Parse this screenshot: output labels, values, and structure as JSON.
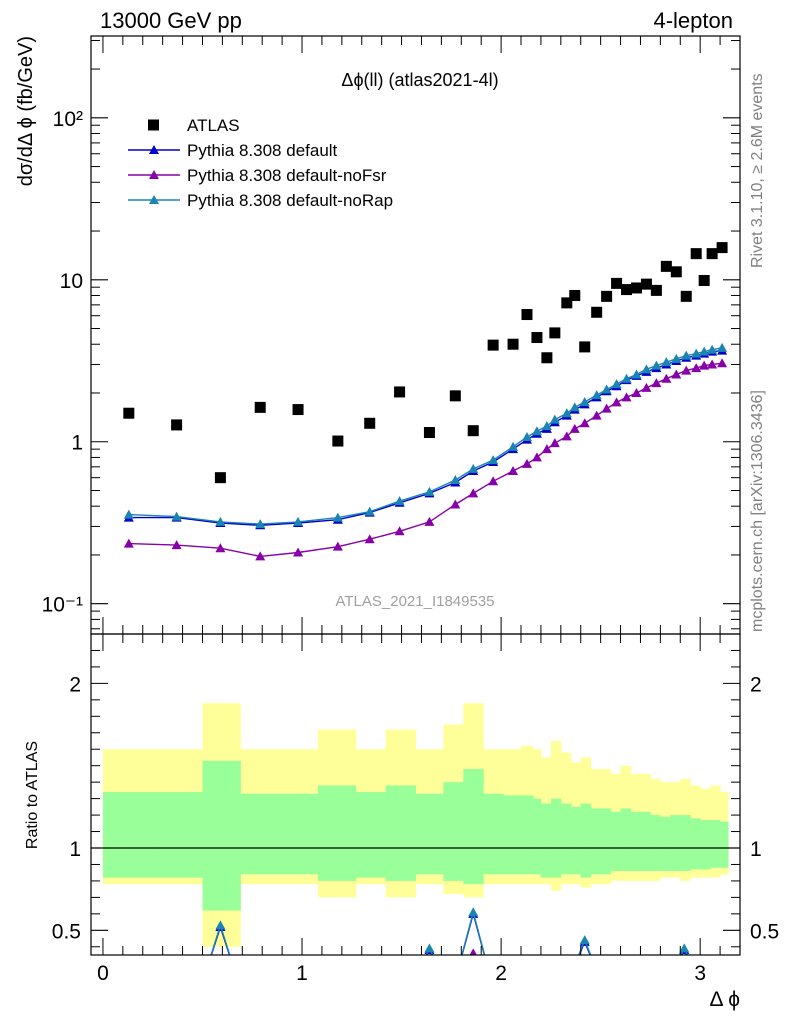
{
  "header": {
    "left": "13000 GeV pp",
    "right": "4-lepton"
  },
  "side_text": {
    "top": "Rivet 3.1.10, ≥ 2.6M events",
    "bottom": "mcplots.cern.ch [arXiv:1306.3436]"
  },
  "chart_data": [
    {
      "type": "scatter",
      "title": "Δϕ(ll) (atlas2021-4l)",
      "watermark": "ATLAS_2021_I1849535",
      "ylabel": "dσ/dΔ ϕ (fb/GeV)",
      "xlabel": "",
      "yscale": "log",
      "ylim": [
        0.065,
        320
      ],
      "xlim": [
        -0.06,
        3.2
      ],
      "ytick_labels": [
        "10⁻¹",
        "1",
        "10",
        "10²"
      ],
      "legend_position": "top-left",
      "series": [
        {
          "name": "ATLAS",
          "color": "#000000",
          "marker": "square",
          "x": [
            0.13,
            0.37,
            0.59,
            0.79,
            0.98,
            1.18,
            1.34,
            1.49,
            1.64,
            1.77,
            1.86,
            1.96,
            2.06,
            2.13,
            2.18,
            2.23,
            2.27,
            2.33,
            2.37,
            2.42,
            2.48,
            2.53,
            2.58,
            2.63,
            2.68,
            2.73,
            2.78,
            2.83,
            2.88,
            2.93,
            2.98,
            3.02,
            3.06,
            3.11
          ],
          "y": [
            1.5,
            1.27,
            0.6,
            1.63,
            1.58,
            1.01,
            1.3,
            2.03,
            1.14,
            1.92,
            1.17,
            3.95,
            4.0,
            6.1,
            4.4,
            3.3,
            4.7,
            7.2,
            8.0,
            3.85,
            6.3,
            7.9,
            9.5,
            8.7,
            8.9,
            9.4,
            8.6,
            12.1,
            11.2,
            7.9,
            14.5,
            9.9,
            14.5,
            15.8
          ]
        },
        {
          "name": "Pythia 8.308 default",
          "color": "#0000cc",
          "marker": "triangle",
          "x": [
            0.13,
            0.37,
            0.59,
            0.79,
            0.98,
            1.18,
            1.34,
            1.49,
            1.64,
            1.77,
            1.86,
            1.96,
            2.06,
            2.13,
            2.18,
            2.23,
            2.27,
            2.33,
            2.37,
            2.42,
            2.48,
            2.53,
            2.58,
            2.63,
            2.68,
            2.73,
            2.78,
            2.83,
            2.88,
            2.93,
            2.98,
            3.02,
            3.06,
            3.11
          ],
          "y": [
            0.34,
            0.34,
            0.315,
            0.305,
            0.315,
            0.33,
            0.365,
            0.42,
            0.48,
            0.56,
            0.66,
            0.75,
            0.9,
            1.03,
            1.12,
            1.2,
            1.32,
            1.45,
            1.58,
            1.7,
            1.88,
            2.05,
            2.2,
            2.4,
            2.55,
            2.7,
            2.85,
            3.0,
            3.15,
            3.3,
            3.4,
            3.5,
            3.6,
            3.65
          ]
        },
        {
          "name": "Pythia 8.308 default-noFsr",
          "color": "#8800aa",
          "marker": "triangle",
          "x": [
            0.13,
            0.37,
            0.59,
            0.79,
            0.98,
            1.18,
            1.34,
            1.49,
            1.64,
            1.77,
            1.86,
            1.96,
            2.06,
            2.13,
            2.18,
            2.23,
            2.27,
            2.33,
            2.37,
            2.42,
            2.48,
            2.53,
            2.58,
            2.63,
            2.68,
            2.73,
            2.78,
            2.83,
            2.88,
            2.93,
            2.98,
            3.02,
            3.06,
            3.11
          ],
          "y": [
            0.235,
            0.23,
            0.22,
            0.196,
            0.207,
            0.225,
            0.25,
            0.28,
            0.32,
            0.41,
            0.48,
            0.57,
            0.66,
            0.73,
            0.8,
            0.9,
            0.98,
            1.08,
            1.2,
            1.3,
            1.45,
            1.6,
            1.75,
            1.88,
            2.0,
            2.15,
            2.3,
            2.45,
            2.6,
            2.75,
            2.85,
            2.95,
            3.0,
            3.05
          ]
        },
        {
          "name": "Pythia 8.308 default-noRap",
          "color": "#1a85b3",
          "marker": "triangle",
          "x": [
            0.13,
            0.37,
            0.59,
            0.79,
            0.98,
            1.18,
            1.34,
            1.49,
            1.64,
            1.77,
            1.86,
            1.96,
            2.06,
            2.13,
            2.18,
            2.23,
            2.27,
            2.33,
            2.37,
            2.42,
            2.48,
            2.53,
            2.58,
            2.63,
            2.68,
            2.73,
            2.78,
            2.83,
            2.88,
            2.93,
            2.98,
            3.02,
            3.06,
            3.11
          ],
          "y": [
            0.355,
            0.345,
            0.32,
            0.31,
            0.32,
            0.34,
            0.37,
            0.43,
            0.49,
            0.58,
            0.68,
            0.77,
            0.93,
            1.07,
            1.16,
            1.25,
            1.37,
            1.5,
            1.63,
            1.76,
            1.94,
            2.1,
            2.27,
            2.45,
            2.6,
            2.8,
            2.95,
            3.1,
            3.25,
            3.4,
            3.5,
            3.6,
            3.7,
            3.8
          ]
        }
      ]
    },
    {
      "type": "area",
      "title": "",
      "ylabel": "Ratio to ATLAS",
      "xlabel": "Δ ϕ",
      "ylim": [
        0.35,
        2.3
      ],
      "xlim": [
        -0.06,
        3.2
      ],
      "ytick_labels": [
        "0.5",
        "1",
        "2"
      ],
      "xtick_labels": [
        "0",
        "1",
        "2",
        "3"
      ],
      "bins": [
        0,
        0.26,
        0.5,
        0.69,
        0.89,
        1.08,
        1.27,
        1.42,
        1.57,
        1.71,
        1.81,
        1.91,
        2.01,
        2.1,
        2.16,
        2.2,
        2.25,
        2.3,
        2.35,
        2.4,
        2.45,
        2.5,
        2.55,
        2.6,
        2.65,
        2.7,
        2.75,
        2.8,
        2.85,
        2.9,
        2.95,
        3.0,
        3.05,
        3.1,
        3.14
      ],
      "band_stat_sys": {
        "color": "#ffff99",
        "low": [
          0.78,
          0.78,
          0.4,
          0.78,
          0.78,
          0.7,
          0.78,
          0.7,
          0.78,
          0.72,
          0.7,
          0.78,
          0.78,
          0.78,
          0.78,
          0.78,
          0.74,
          0.78,
          0.78,
          0.76,
          0.78,
          0.78,
          0.8,
          0.8,
          0.8,
          0.8,
          0.8,
          0.82,
          0.82,
          0.8,
          0.82,
          0.82,
          0.82,
          0.84
        ],
        "high": [
          1.6,
          1.6,
          1.88,
          1.6,
          1.6,
          1.72,
          1.6,
          1.72,
          1.6,
          1.75,
          1.88,
          1.6,
          1.6,
          1.62,
          1.6,
          1.55,
          1.65,
          1.58,
          1.52,
          1.55,
          1.48,
          1.48,
          1.45,
          1.5,
          1.45,
          1.45,
          1.42,
          1.4,
          1.4,
          1.42,
          1.38,
          1.36,
          1.38,
          1.34
        ]
      },
      "band_stat": {
        "color": "#99ff99",
        "low": [
          0.82,
          0.82,
          0.62,
          0.84,
          0.84,
          0.8,
          0.82,
          0.8,
          0.84,
          0.8,
          0.78,
          0.84,
          0.84,
          0.84,
          0.84,
          0.82,
          0.82,
          0.84,
          0.84,
          0.82,
          0.84,
          0.84,
          0.86,
          0.86,
          0.86,
          0.86,
          0.86,
          0.86,
          0.86,
          0.86,
          0.87,
          0.87,
          0.88,
          0.88
        ],
        "high": [
          1.34,
          1.34,
          1.53,
          1.33,
          1.33,
          1.38,
          1.34,
          1.38,
          1.33,
          1.4,
          1.48,
          1.33,
          1.32,
          1.32,
          1.3,
          1.27,
          1.3,
          1.27,
          1.25,
          1.27,
          1.24,
          1.24,
          1.22,
          1.24,
          1.22,
          1.22,
          1.2,
          1.19,
          1.2,
          1.2,
          1.18,
          1.17,
          1.17,
          1.16
        ]
      },
      "reference_line": 1,
      "visible_ratio_points": [
        {
          "series": "Pythia 8.308 default",
          "x": [
            0.59,
            1.64,
            1.86,
            2.42,
            2.92
          ],
          "y": [
            0.52,
            0.38,
            0.6,
            0.43,
            0.38
          ]
        },
        {
          "series": "Pythia 8.308 default-noFsr",
          "x": [
            1.86
          ],
          "y": [
            0.36
          ]
        },
        {
          "series": "Pythia 8.308 default-noRap",
          "x": [
            0.59,
            1.64,
            1.86,
            2.42,
            2.92
          ],
          "y": [
            0.53,
            0.39,
            0.61,
            0.44,
            0.39
          ]
        }
      ]
    }
  ]
}
